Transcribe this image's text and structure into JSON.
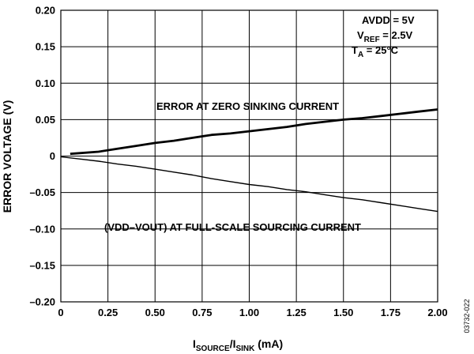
{
  "chart_data": {
    "type": "line",
    "x_label": {
      "main": "I",
      "sub1": "SOURCE",
      "slash": "/I",
      "sub2": "SINK",
      "unit": " (mA)"
    },
    "ylabel": "ERROR VOLTAGE (V)",
    "xlim": [
      0,
      2.0
    ],
    "ylim": [
      -0.2,
      0.2
    ],
    "grid": true,
    "x_ticks": [
      {
        "value": 0,
        "label": "0"
      },
      {
        "value": 0.25,
        "label": "0.25"
      },
      {
        "value": 0.5,
        "label": "0.50"
      },
      {
        "value": 0.75,
        "label": "0.75"
      },
      {
        "value": 1.0,
        "label": "1.00"
      },
      {
        "value": 1.25,
        "label": "1.25"
      },
      {
        "value": 1.5,
        "label": "1.50"
      },
      {
        "value": 1.75,
        "label": "1.75"
      },
      {
        "value": 2.0,
        "label": "2.00"
      }
    ],
    "y_ticks": [
      {
        "value": 0.2,
        "label": "0.20"
      },
      {
        "value": 0.15,
        "label": "0.15"
      },
      {
        "value": 0.1,
        "label": "0.10"
      },
      {
        "value": 0.05,
        "label": "0.05"
      },
      {
        "value": 0,
        "label": "0"
      },
      {
        "value": -0.05,
        "label": "–0.05"
      },
      {
        "value": -0.1,
        "label": "–0.10"
      },
      {
        "value": -0.15,
        "label": "–0.15"
      },
      {
        "value": -0.2,
        "label": "–0.20"
      }
    ],
    "conditions": {
      "avdd": "AVDD = 5V",
      "vref_main": "V",
      "vref_sub": "REF",
      "vref_value": " = 2.5V",
      "ta_main": "T",
      "ta_sub": "A",
      "ta_value": " = 25°C"
    },
    "series": [
      {
        "annotation": "ERROR AT ZERO SINKING CURRENT",
        "x": [
          0.05,
          0.1,
          0.2,
          0.3,
          0.4,
          0.5,
          0.6,
          0.7,
          0.8,
          0.9,
          1.0,
          1.1,
          1.2,
          1.3,
          1.4,
          1.5,
          1.6,
          1.7,
          1.8,
          1.9,
          2.0
        ],
        "y": [
          0.003,
          0.004,
          0.006,
          0.01,
          0.014,
          0.018,
          0.021,
          0.025,
          0.029,
          0.031,
          0.034,
          0.037,
          0.04,
          0.044,
          0.047,
          0.05,
          0.052,
          0.055,
          0.058,
          0.061,
          0.064
        ]
      },
      {
        "annotation": "(VDD–VOUT) AT FULL-SCALE SOURCING CURRENT",
        "x": [
          0,
          0.1,
          0.2,
          0.3,
          0.4,
          0.5,
          0.6,
          0.7,
          0.8,
          0.9,
          1.0,
          1.1,
          1.2,
          1.3,
          1.4,
          1.5,
          1.6,
          1.7,
          1.8,
          1.9,
          2.0
        ],
        "y": [
          -0.001,
          -0.004,
          -0.007,
          -0.011,
          -0.014,
          -0.018,
          -0.022,
          -0.026,
          -0.031,
          -0.035,
          -0.039,
          -0.042,
          -0.046,
          -0.049,
          -0.053,
          -0.057,
          -0.06,
          -0.064,
          -0.068,
          -0.072,
          -0.076
        ]
      }
    ],
    "figure_id": "03732-022"
  }
}
